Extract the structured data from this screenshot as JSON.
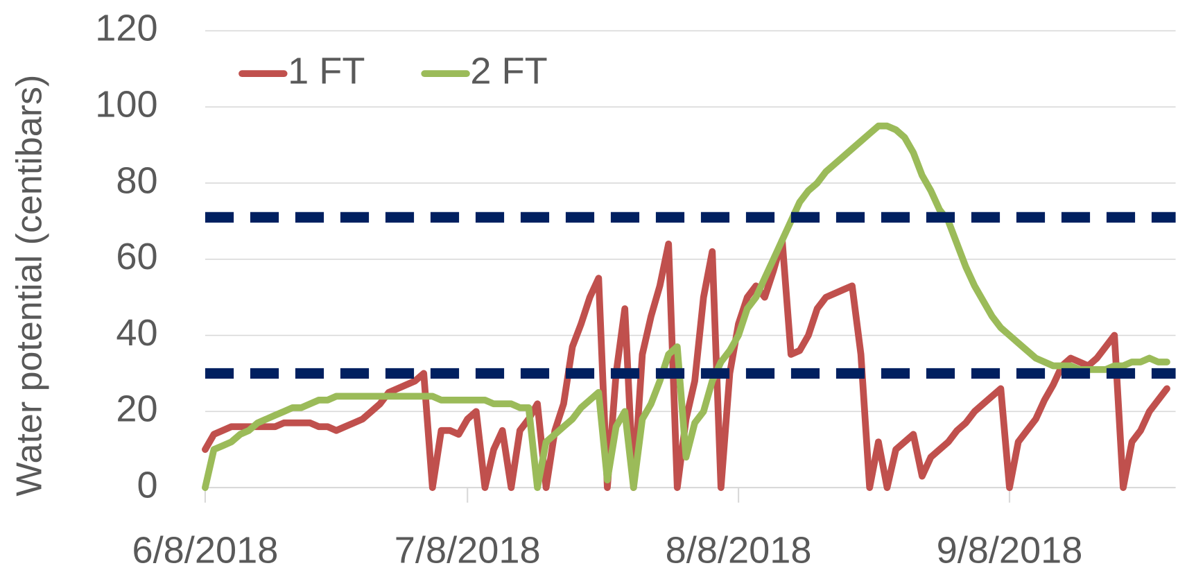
{
  "chart_data": {
    "type": "line",
    "y_label": "Water potential (centibars)",
    "x": [
      "2018-06-08",
      "2018-06-09",
      "2018-06-10",
      "2018-06-11",
      "2018-06-12",
      "2018-06-13",
      "2018-06-14",
      "2018-06-15",
      "2018-06-16",
      "2018-06-17",
      "2018-06-18",
      "2018-06-19",
      "2018-06-20",
      "2018-06-21",
      "2018-06-22",
      "2018-06-23",
      "2018-06-24",
      "2018-06-25",
      "2018-06-26",
      "2018-06-27",
      "2018-06-28",
      "2018-06-29",
      "2018-06-30",
      "2018-07-01",
      "2018-07-02",
      "2018-07-03",
      "2018-07-04",
      "2018-07-05",
      "2018-07-06",
      "2018-07-07",
      "2018-07-08",
      "2018-07-09",
      "2018-07-10",
      "2018-07-11",
      "2018-07-12",
      "2018-07-13",
      "2018-07-14",
      "2018-07-15",
      "2018-07-16",
      "2018-07-17",
      "2018-07-18",
      "2018-07-19",
      "2018-07-20",
      "2018-07-21",
      "2018-07-22",
      "2018-07-23",
      "2018-07-24",
      "2018-07-25",
      "2018-07-26",
      "2018-07-27",
      "2018-07-28",
      "2018-07-29",
      "2018-07-30",
      "2018-07-31",
      "2018-08-01",
      "2018-08-02",
      "2018-08-03",
      "2018-08-04",
      "2018-08-05",
      "2018-08-06",
      "2018-08-07",
      "2018-08-08",
      "2018-08-09",
      "2018-08-10",
      "2018-08-11",
      "2018-08-12",
      "2018-08-13",
      "2018-08-14",
      "2018-08-15",
      "2018-08-16",
      "2018-08-17",
      "2018-08-18",
      "2018-08-19",
      "2018-08-20",
      "2018-08-21",
      "2018-08-22",
      "2018-08-23",
      "2018-08-24",
      "2018-08-25",
      "2018-08-26",
      "2018-08-27",
      "2018-08-28",
      "2018-08-29",
      "2018-08-30",
      "2018-08-31",
      "2018-09-01",
      "2018-09-02",
      "2018-09-03",
      "2018-09-04",
      "2018-09-05",
      "2018-09-06",
      "2018-09-07",
      "2018-09-08",
      "2018-09-09",
      "2018-09-10",
      "2018-09-11",
      "2018-09-12",
      "2018-09-13",
      "2018-09-14",
      "2018-09-15",
      "2018-09-16",
      "2018-09-17",
      "2018-09-18",
      "2018-09-19",
      "2018-09-20",
      "2018-09-21",
      "2018-09-22",
      "2018-09-23",
      "2018-09-24",
      "2018-09-25",
      "2018-09-26"
    ],
    "series": [
      {
        "name": "1 FT",
        "color": "#c0504d",
        "values": [
          10,
          14,
          15,
          16,
          16,
          16,
          16,
          16,
          16,
          17,
          17,
          17,
          17,
          16,
          16,
          15,
          16,
          17,
          18,
          20,
          22,
          25,
          26,
          27,
          28,
          30,
          0,
          15,
          15,
          14,
          18,
          20,
          0,
          10,
          15,
          0,
          15,
          18,
          22,
          0,
          15,
          22,
          37,
          43,
          50,
          55,
          0,
          30,
          47,
          0,
          35,
          45,
          53,
          64,
          0,
          18,
          28,
          50,
          62,
          0,
          30,
          43,
          50,
          53,
          50,
          57,
          65,
          35,
          36,
          40,
          47,
          50,
          51,
          52,
          53,
          35,
          0,
          12,
          0,
          10,
          12,
          14,
          3,
          8,
          10,
          12,
          15,
          17,
          20,
          22,
          24,
          26,
          0,
          12,
          15,
          18,
          23,
          27,
          32,
          34,
          33,
          32,
          34,
          37,
          40,
          0,
          12,
          15,
          20,
          23,
          26
        ]
      },
      {
        "name": "2 FT",
        "color": "#9bbb59",
        "values": [
          0,
          10,
          11,
          12,
          14,
          15,
          17,
          18,
          19,
          20,
          21,
          21,
          22,
          23,
          23,
          24,
          24,
          24,
          24,
          24,
          24,
          24,
          24,
          24,
          24,
          24,
          24,
          23,
          23,
          23,
          23,
          23,
          23,
          22,
          22,
          22,
          21,
          21,
          0,
          12,
          14,
          16,
          18,
          21,
          23,
          25,
          2,
          16,
          20,
          0,
          18,
          22,
          28,
          35,
          37,
          8,
          17,
          20,
          28,
          33,
          36,
          40,
          47,
          50,
          55,
          60,
          65,
          70,
          75,
          78,
          80,
          83,
          85,
          87,
          89,
          91,
          93,
          95,
          95,
          94,
          92,
          88,
          82,
          78,
          73,
          70,
          64,
          58,
          53,
          49,
          45,
          42,
          40,
          38,
          36,
          34,
          33,
          32,
          32,
          32,
          31,
          31,
          31,
          31,
          32,
          32,
          33,
          33,
          34,
          33,
          33
        ]
      }
    ],
    "xlim": [
      "2018-06-08",
      "2018-09-27"
    ],
    "xticks": [
      {
        "value": "2018-06-08",
        "label": "6/8/2018"
      },
      {
        "value": "2018-07-08",
        "label": "7/8/2018"
      },
      {
        "value": "2018-08-08",
        "label": "8/8/2018"
      },
      {
        "value": "2018-09-08",
        "label": "9/8/2018"
      }
    ],
    "ylim": [
      0,
      120
    ],
    "yticks": [
      0,
      20,
      40,
      60,
      80,
      100,
      120
    ],
    "grid": true,
    "legend": "top-left",
    "hlines": [
      71,
      30
    ],
    "hline_color": "#002060"
  }
}
